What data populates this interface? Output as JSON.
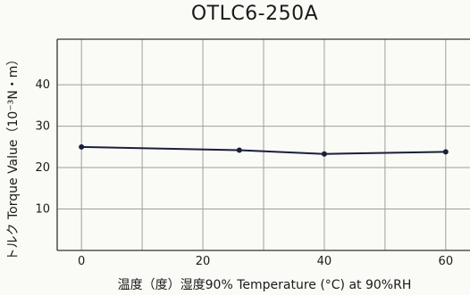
{
  "chart_data": {
    "type": "line",
    "title": "OTLC6-250A",
    "xlabel": "温度（度）湿度90% Temperature (°C) at 90%RH",
    "ylabel": "トルク Torque Value（10⁻³N・m）",
    "x_ticks": [
      0,
      20,
      40,
      60
    ],
    "y_ticks": [
      10,
      20,
      30,
      40
    ],
    "xlim": [
      -4,
      64
    ],
    "ylim": [
      0,
      51
    ],
    "grid": true,
    "series": [
      {
        "x": [
          0,
          26,
          40,
          60
        ],
        "y": [
          25,
          24.2,
          23.3,
          23.8
        ]
      }
    ],
    "colors": {
      "line": "#1a1f3a",
      "grid": "#a0a098",
      "axis": "#333333"
    }
  }
}
